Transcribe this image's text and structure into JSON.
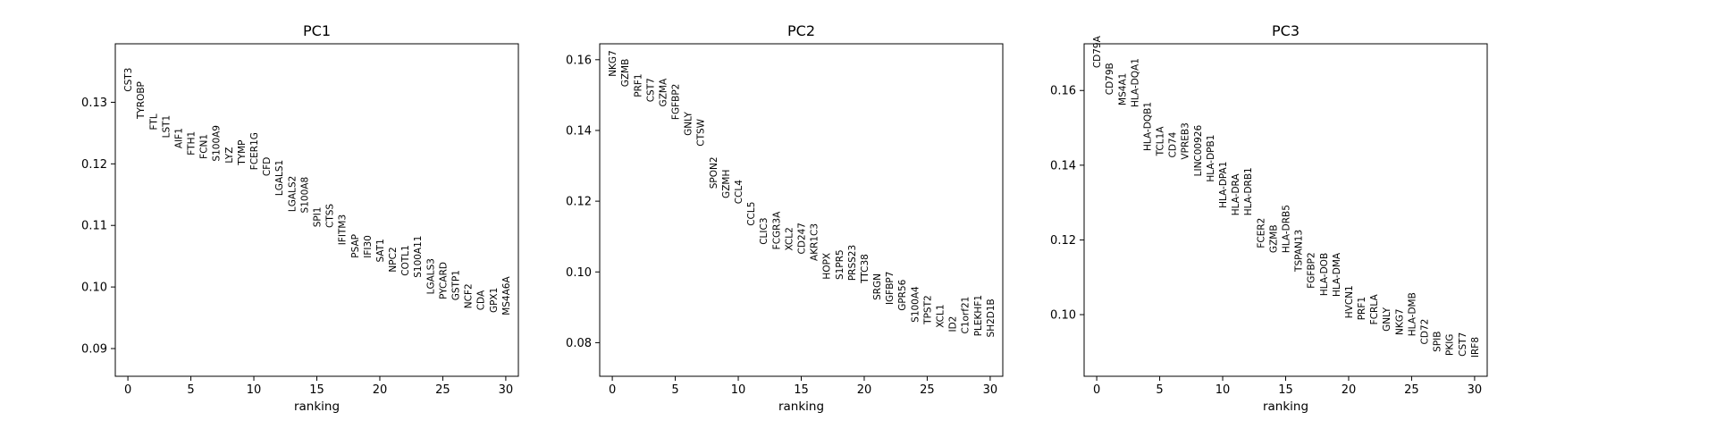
{
  "chart_data": [
    {
      "type": "scatter",
      "title": "PC1",
      "xlabel": "ranking",
      "ylabel": "",
      "xlim": [
        -1,
        31
      ],
      "ylim": [
        0.0855,
        0.1395
      ],
      "xticks": [
        0,
        5,
        10,
        15,
        20,
        25,
        30
      ],
      "yticks": [
        0.09,
        0.1,
        0.11,
        0.12,
        0.13
      ],
      "ytick_labels": [
        "0.09",
        "0.10",
        "0.11",
        "0.12",
        "0.13"
      ],
      "genes": [
        "CST3",
        "TYROBP",
        "FTL",
        "LST1",
        "AIF1",
        "FTH1",
        "FCN1",
        "S100A9",
        "LYZ",
        "TYMP",
        "FCER1G",
        "CFD",
        "LGALS1",
        "LGALS2",
        "S100A8",
        "SPI1",
        "CTSS",
        "IFITM3",
        "PSAP",
        "IFI30",
        "SAT1",
        "NPC2",
        "COTL1",
        "S100A11",
        "LGALS3",
        "PYCARD",
        "GSTP1",
        "NCF2",
        "CDA",
        "GPX1",
        "MS4A6A"
      ],
      "values": [
        0.1317,
        0.1273,
        0.1255,
        0.1242,
        0.1225,
        0.1214,
        0.1208,
        0.1204,
        0.1201,
        0.1198,
        0.119,
        0.118,
        0.1148,
        0.1122,
        0.112,
        0.1097,
        0.1096,
        0.1068,
        0.1047,
        0.1047,
        0.104,
        0.1024,
        0.1018,
        0.1015,
        0.0988,
        0.098,
        0.0978,
        0.0965,
        0.0962,
        0.0958,
        0.0954
      ]
    },
    {
      "type": "scatter",
      "title": "PC2",
      "xlabel": "ranking",
      "ylabel": "",
      "xlim": [
        -1,
        31
      ],
      "ylim": [
        0.0705,
        0.1645
      ],
      "xticks": [
        0,
        5,
        10,
        15,
        20,
        25,
        30
      ],
      "yticks": [
        0.08,
        0.1,
        0.12,
        0.14,
        0.16
      ],
      "ytick_labels": [
        "0.08",
        "0.10",
        "0.12",
        "0.14",
        "0.16"
      ],
      "genes": [
        "NKG7",
        "GZMB",
        "PRF1",
        "CST7",
        "GZMA",
        "FGFBP2",
        "GNLY",
        "CTSW",
        "SPON2",
        "GZMH",
        "CCL4",
        "CCL5",
        "CLIC3",
        "FCGR3A",
        "XCL2",
        "CD247",
        "AKR1C3",
        "HOPX",
        "S1PR5",
        "PRSS23",
        "TTC38",
        "SRGN",
        "IGFBP7",
        "GPR56",
        "S100A4",
        "TPST2",
        "XCL1",
        "ID2",
        "C1orf21",
        "PLEKHF1",
        "SH2D1B"
      ],
      "values": [
        0.1552,
        0.1523,
        0.1494,
        0.148,
        0.1467,
        0.143,
        0.1385,
        0.1355,
        0.1235,
        0.1208,
        0.1192,
        0.113,
        0.1077,
        0.1063,
        0.106,
        0.105,
        0.1031,
        0.0979,
        0.0978,
        0.0975,
        0.0968,
        0.092,
        0.0907,
        0.089,
        0.0857,
        0.0852,
        0.0842,
        0.083,
        0.0825,
        0.0818,
        0.0815
      ]
    },
    {
      "type": "scatter",
      "title": "PC3",
      "xlabel": "ranking",
      "ylabel": "",
      "xlim": [
        -1,
        31
      ],
      "ylim": [
        0.0835,
        0.1725
      ],
      "xticks": [
        0,
        5,
        10,
        15,
        20,
        25,
        30
      ],
      "yticks": [
        0.1,
        0.12,
        0.14,
        0.16
      ],
      "ytick_labels": [
        "0.10",
        "0.12",
        "0.14",
        "0.16"
      ],
      "genes": [
        "CD79A",
        "CD79B",
        "MS4A1",
        "HLA-DQA1",
        "HLA-DQB1",
        "TCL1A",
        "CD74",
        "VPREB3",
        "LINC00926",
        "HLA-DPB1",
        "HLA-DPA1",
        "HLA-DRA",
        "HLA-DRB1",
        "FCER2",
        "GZMB",
        "HLA-DRB5",
        "TSPAN13",
        "FGFBP2",
        "HLA-DOB",
        "HLA-DMA",
        "HVCN1",
        "PRF1",
        "FCRLA",
        "GNLY",
        "NKG7",
        "HLA-DMB",
        "CD72",
        "SPIB",
        "PKIG",
        "CST7",
        "IRF8"
      ],
      "values": [
        0.166,
        0.1588,
        0.156,
        0.1555,
        0.1438,
        0.1425,
        0.142,
        0.1415,
        0.137,
        0.1355,
        0.1285,
        0.1265,
        0.1265,
        0.1178,
        0.1165,
        0.1165,
        0.1115,
        0.107,
        0.105,
        0.1048,
        0.099,
        0.0985,
        0.0973,
        0.0955,
        0.0945,
        0.0942,
        0.092,
        0.09,
        0.089,
        0.0888,
        0.0885
      ]
    }
  ]
}
